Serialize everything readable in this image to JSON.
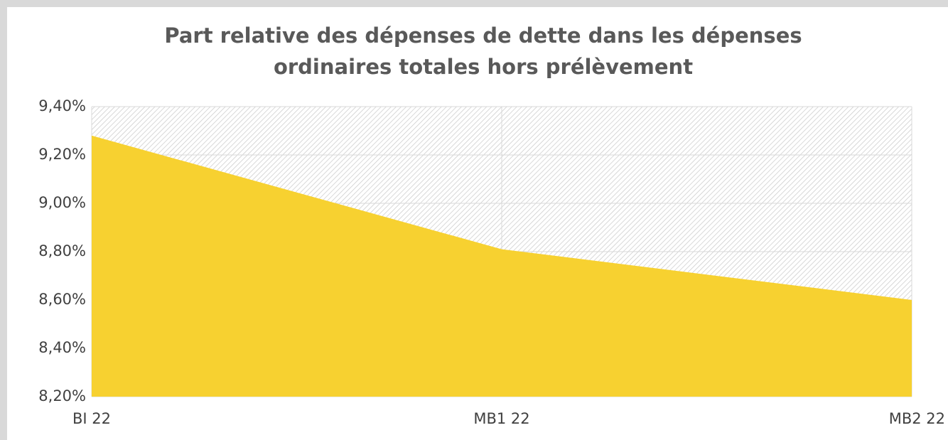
{
  "chart_data": {
    "type": "area",
    "title": [
      "Part relative des dépenses de dette dans les dépenses",
      "ordinaires totales hors prélèvement"
    ],
    "categories": [
      "BI 22",
      "MB1 22",
      "MB2 22"
    ],
    "values": [
      9.28,
      8.81,
      8.6
    ],
    "color": "#f7d130",
    "ylim": [
      8.2,
      9.4
    ],
    "yticks": [
      {
        "value": 8.2,
        "label": "8,20%"
      },
      {
        "value": 8.4,
        "label": "8,40%"
      },
      {
        "value": 8.6,
        "label": "8,60%"
      },
      {
        "value": 8.8,
        "label": "8,80%"
      },
      {
        "value": 9.0,
        "label": "9,00%"
      },
      {
        "value": 9.2,
        "label": "9,20%"
      },
      {
        "value": 9.4,
        "label": "9,40%"
      }
    ],
    "grid": true
  }
}
